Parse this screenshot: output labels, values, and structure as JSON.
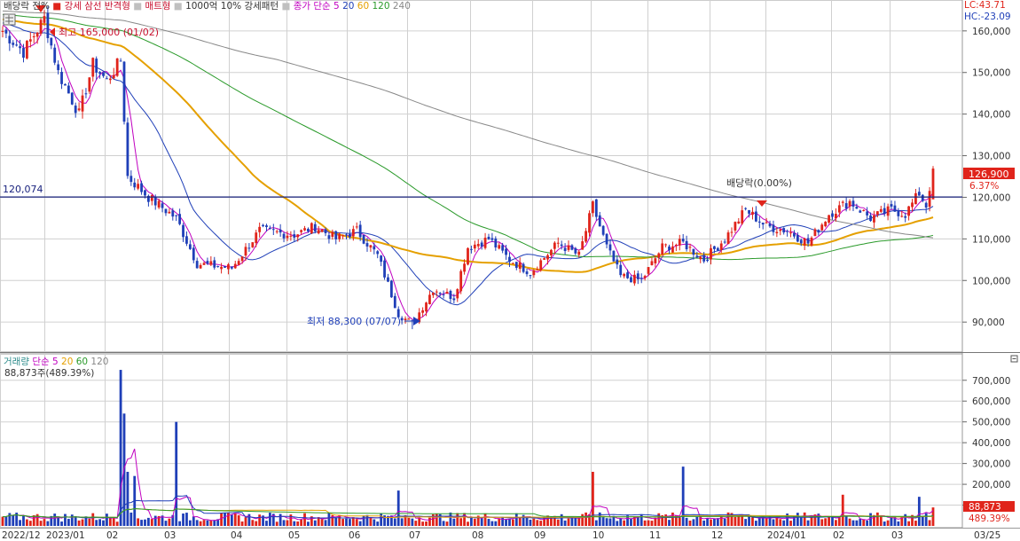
{
  "price_panel": {
    "legend": [
      {
        "text": "배당락 전%",
        "color": "#333333"
      },
      {
        "text": "■",
        "color": "#e0241b"
      },
      {
        "text": "강세 삼선 반격형",
        "color": "#c8102e"
      },
      {
        "text": "■",
        "color": "#c0c0c0"
      },
      {
        "text": "매트형",
        "color": "#c8102e"
      },
      {
        "text": "■",
        "color": "#c0c0c0"
      },
      {
        "text": "1000억 10% 강세패턴",
        "color": "#333333"
      },
      {
        "text": "■",
        "color": "#c0c0c0"
      },
      {
        "text": "종가 단순",
        "color": "#c000c0"
      },
      {
        "text": "5",
        "color": "#c000c0"
      },
      {
        "text": "20",
        "color": "#1f3fb8"
      },
      {
        "text": "60",
        "color": "#e5a000"
      },
      {
        "text": "120",
        "color": "#2a9a2a"
      },
      {
        "text": "240",
        "color": "#888888"
      }
    ],
    "corner": {
      "lc": "LC:43.71",
      "hc": "HC:-23.09"
    },
    "y_ticks": [
      "160,000",
      "150,000",
      "140,000",
      "130,000",
      "120,000",
      "110,000",
      "100,000",
      "90,000"
    ],
    "hline": {
      "value": 120074,
      "label": "120,074"
    },
    "annotations": {
      "high": "최고 165,000 (01/02)",
      "low": "최저 88,300 (07/07)",
      "dividend": "배당락(0.00%)"
    },
    "last_price": "126,900",
    "last_change": "6.37%"
  },
  "volume_panel": {
    "legend": [
      {
        "text": "거래량",
        "color": "#2a8a8a"
      },
      {
        "text": "단순",
        "color": "#c000c0"
      },
      {
        "text": "5",
        "color": "#c000c0"
      },
      {
        "text": "20",
        "color": "#e5a000"
      },
      {
        "text": "60",
        "color": "#2a9a2a"
      },
      {
        "text": "120",
        "color": "#888888"
      }
    ],
    "value_text": "88,873주(489.39%)",
    "y_ticks": [
      "700,000",
      "600,000",
      "500,000",
      "400,000",
      "300,000",
      "200,000",
      "100,000"
    ],
    "last_volume": "88,873",
    "last_volume_pct": "489.39%"
  },
  "x_labels": [
    "2022/12",
    "2023/01",
    "02",
    "03",
    "04",
    "05",
    "06",
    "07",
    "08",
    "09",
    "10",
    "11",
    "12",
    "2024/01",
    "02",
    "03"
  ],
  "x_end_label": "03/25",
  "colors": {
    "up": "#e0241b",
    "down": "#1f3fb8",
    "grid": "#d0d0d0",
    "axis": "#888888"
  },
  "chart_data": {
    "type": "candlestick",
    "price_ylim": [
      83000,
      167000
    ],
    "volume_ylim": [
      0,
      780000
    ],
    "months": [
      "2022/12",
      "2023/01",
      "02",
      "03",
      "04",
      "05",
      "06",
      "07",
      "08",
      "09",
      "10",
      "11",
      "12",
      "2024/01",
      "02",
      "03"
    ],
    "close_anchors": [
      {
        "t": 0,
        "v": 160000
      },
      {
        "t": 6,
        "v": 155000
      },
      {
        "t": 12,
        "v": 163000
      },
      {
        "t": 16,
        "v": 150000
      },
      {
        "t": 22,
        "v": 140000
      },
      {
        "t": 26,
        "v": 152000
      },
      {
        "t": 30,
        "v": 148000
      },
      {
        "t": 34,
        "v": 153000
      },
      {
        "t": 36,
        "v": 125000
      },
      {
        "t": 42,
        "v": 120000
      },
      {
        "t": 50,
        "v": 115000
      },
      {
        "t": 56,
        "v": 104000
      },
      {
        "t": 66,
        "v": 103000
      },
      {
        "t": 74,
        "v": 112000
      },
      {
        "t": 84,
        "v": 111000
      },
      {
        "t": 90,
        "v": 113000
      },
      {
        "t": 96,
        "v": 110000
      },
      {
        "t": 102,
        "v": 112000
      },
      {
        "t": 108,
        "v": 106000
      },
      {
        "t": 114,
        "v": 92000
      },
      {
        "t": 118,
        "v": 89500
      },
      {
        "t": 124,
        "v": 98000
      },
      {
        "t": 130,
        "v": 96000
      },
      {
        "t": 134,
        "v": 108000
      },
      {
        "t": 140,
        "v": 110000
      },
      {
        "t": 146,
        "v": 105000
      },
      {
        "t": 152,
        "v": 102000
      },
      {
        "t": 160,
        "v": 109000
      },
      {
        "t": 166,
        "v": 106000
      },
      {
        "t": 170,
        "v": 118000
      },
      {
        "t": 174,
        "v": 108000
      },
      {
        "t": 178,
        "v": 101000
      },
      {
        "t": 184,
        "v": 100000
      },
      {
        "t": 190,
        "v": 108000
      },
      {
        "t": 196,
        "v": 109000
      },
      {
        "t": 202,
        "v": 105000
      },
      {
        "t": 208,
        "v": 110000
      },
      {
        "t": 214,
        "v": 117000
      },
      {
        "t": 220,
        "v": 113000
      },
      {
        "t": 226,
        "v": 112000
      },
      {
        "t": 232,
        "v": 109000
      },
      {
        "t": 238,
        "v": 116000
      },
      {
        "t": 244,
        "v": 119000
      },
      {
        "t": 250,
        "v": 115000
      },
      {
        "t": 256,
        "v": 117000
      },
      {
        "t": 260,
        "v": 116000
      },
      {
        "t": 264,
        "v": 121000
      },
      {
        "t": 266,
        "v": 118000
      },
      {
        "t": 268,
        "v": 126900
      }
    ],
    "volume_spikes": [
      {
        "t": 34,
        "v": 750000
      },
      {
        "t": 35,
        "v": 540000
      },
      {
        "t": 50,
        "v": 500000
      },
      {
        "t": 36,
        "v": 260000
      },
      {
        "t": 38,
        "v": 240000
      },
      {
        "t": 114,
        "v": 170000
      },
      {
        "t": 170,
        "v": 260000
      },
      {
        "t": 196,
        "v": 285000
      },
      {
        "t": 242,
        "v": 150000
      },
      {
        "t": 264,
        "v": 140000
      },
      {
        "t": 268,
        "v": 88873
      }
    ],
    "moving_averages": [
      5,
      20,
      60,
      120,
      240
    ]
  }
}
